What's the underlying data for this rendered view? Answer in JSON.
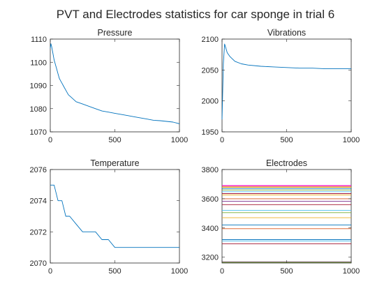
{
  "figure": {
    "title": "PVT and Electrodes statistics for car sponge in trial 6"
  },
  "chart_data": [
    {
      "type": "line",
      "title": "Pressure",
      "xlim": [
        0,
        1000
      ],
      "ylim": [
        1070,
        1110
      ],
      "xticks": [
        "0",
        "500",
        "1000"
      ],
      "yticks": [
        "1070",
        "1080",
        "1090",
        "1100",
        "1110"
      ],
      "color": "#0072bd",
      "series": [
        {
          "x": [
            0,
            5,
            10,
            20,
            30,
            40,
            50,
            60,
            70,
            80,
            90,
            100,
            120,
            140,
            160,
            180,
            200,
            250,
            300,
            350,
            400,
            450,
            500,
            550,
            600,
            650,
            700,
            750,
            800,
            850,
            900,
            950,
            1000
          ],
          "values": [
            1106,
            1108,
            1107,
            1104,
            1101,
            1099,
            1097,
            1095,
            1093,
            1092,
            1091,
            1090,
            1088,
            1086,
            1085,
            1084,
            1083,
            1082,
            1081,
            1080,
            1079,
            1078.5,
            1078,
            1077.5,
            1077,
            1076.5,
            1076,
            1075.5,
            1075,
            1074.8,
            1074.5,
            1074.2,
            1073.5
          ]
        }
      ]
    },
    {
      "type": "line",
      "title": "Vibrations",
      "xlim": [
        0,
        1000
      ],
      "ylim": [
        1950,
        2100
      ],
      "xticks": [
        "0",
        "500",
        "1000"
      ],
      "yticks": [
        "1950",
        "2000",
        "2050",
        "2100"
      ],
      "color": "#0072bd",
      "series": [
        {
          "x": [
            0,
            10,
            20,
            30,
            40,
            60,
            80,
            100,
            150,
            200,
            300,
            400,
            500,
            600,
            700,
            800,
            900,
            1000
          ],
          "values": [
            1970,
            2060,
            2092,
            2085,
            2078,
            2072,
            2068,
            2064,
            2060,
            2058,
            2056,
            2055,
            2054,
            2053,
            2053,
            2052,
            2052,
            2052
          ]
        }
      ]
    },
    {
      "type": "line",
      "title": "Temperature",
      "xlim": [
        0,
        1000
      ],
      "ylim": [
        2070,
        2076
      ],
      "xticks": [
        "0",
        "500",
        "1000"
      ],
      "yticks": [
        "2070",
        "2072",
        "2074",
        "2076"
      ],
      "color": "#0072bd",
      "series": [
        {
          "x": [
            0,
            30,
            60,
            90,
            120,
            150,
            200,
            250,
            300,
            350,
            400,
            450,
            500,
            600,
            700,
            800,
            900,
            1000
          ],
          "values": [
            2075,
            2075,
            2074,
            2074,
            2073,
            2073,
            2072.5,
            2072,
            2072,
            2072,
            2071.5,
            2071.5,
            2071,
            2071,
            2071,
            2071,
            2071,
            2071
          ]
        }
      ]
    },
    {
      "type": "line",
      "title": "Electrodes",
      "xlim": [
        0,
        1000
      ],
      "ylim": [
        3160,
        3800
      ],
      "xticks": [
        "0",
        "500",
        "1000"
      ],
      "yticks": [
        "3200",
        "3400",
        "3600",
        "3800"
      ],
      "series": [
        {
          "values": [
            3690,
            3690
          ],
          "color": "#ff00ff"
        },
        {
          "values": [
            3685,
            3685
          ],
          "color": "#d95319"
        },
        {
          "values": [
            3678,
            3678
          ],
          "color": "#edb120"
        },
        {
          "values": [
            3670,
            3670
          ],
          "color": "#0072bd"
        },
        {
          "values": [
            3660,
            3660
          ],
          "color": "#77ac30"
        },
        {
          "values": [
            3648,
            3648
          ],
          "color": "#4dbeee"
        },
        {
          "values": [
            3635,
            3635
          ],
          "color": "#a2142f"
        },
        {
          "values": [
            3625,
            3625
          ],
          "color": "#edb120"
        },
        {
          "values": [
            3600,
            3600
          ],
          "color": "#d95319"
        },
        {
          "values": [
            3582,
            3582
          ],
          "color": "#7e2f8e"
        },
        {
          "values": [
            3560,
            3560
          ],
          "color": "#a2142f"
        },
        {
          "values": [
            3520,
            3520
          ],
          "color": "#4dbeee"
        },
        {
          "values": [
            3505,
            3505
          ],
          "color": "#77ac30"
        },
        {
          "values": [
            3470,
            3470
          ],
          "color": "#edb120"
        },
        {
          "values": [
            3420,
            3420
          ],
          "color": "#0072bd"
        },
        {
          "values": [
            3395,
            3395
          ],
          "color": "#d95319"
        },
        {
          "values": [
            3320,
            3320
          ],
          "color": "#0072bd"
        },
        {
          "values": [
            3310,
            3310
          ],
          "color": "#4dbeee"
        },
        {
          "values": [
            3292,
            3292
          ],
          "color": "#a2142f"
        },
        {
          "values": [
            3168,
            3168
          ],
          "color": "#7e2f8e"
        },
        {
          "values": [
            3165,
            3165
          ],
          "color": "#77ac30"
        }
      ]
    }
  ]
}
